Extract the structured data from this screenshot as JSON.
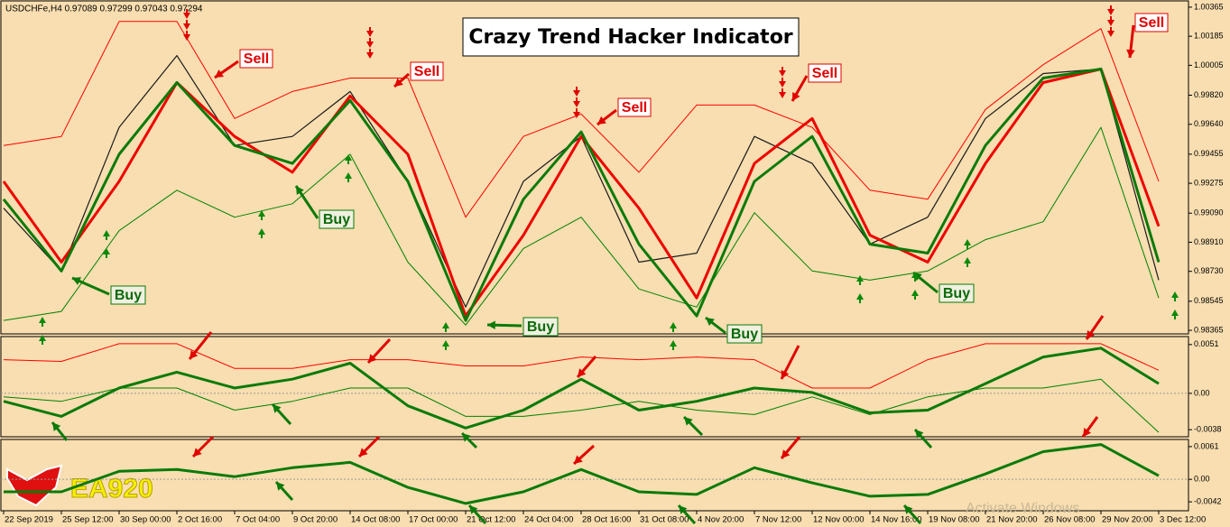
{
  "header": "USDCHFe,H4  0.97089 0.97299 0.97043 0.97294",
  "title": "Crazy Trend Hacker Indicator",
  "logo": "EA920",
  "watermark": "Activate Windows",
  "annotations": {
    "sell": [
      "Sell",
      "Sell",
      "Sell",
      "Sell",
      "Sell"
    ],
    "buy": [
      "Buy",
      "Buy",
      "Buy",
      "Buy",
      "Buy"
    ]
  },
  "chart_data": [
    {
      "type": "line",
      "categories": [
        "22 Sep 2019",
        "25 Sep 12:00",
        "30 Sep 00:00",
        "2 Oct 16:00",
        "7 Oct 04:00",
        "9 Oct 20:00",
        "14 Oct 08:00",
        "17 Oct 00:00",
        "21 Oct 12:00",
        "24 Oct 04:00",
        "28 Oct 16:00",
        "31 Oct 08:00",
        "4 Nov 20:00",
        "7 Nov 12:00",
        "12 Nov 00:00",
        "14 Nov 16:00",
        "19 Nov 08:00",
        "21 Nov 20:00",
        "26 Nov 08:00",
        "29 Nov 20:00",
        "3 Dec 12:00"
      ],
      "series": [
        {
          "color": "#ff0000",
          "values": [
            0.99509,
            0.99565,
            1.00276,
            1.00276,
            0.99676,
            0.99843,
            0.99926,
            0.99926,
            0.99065,
            0.99565,
            0.99704,
            0.99343,
            0.99759,
            0.99759,
            0.99621,
            0.99232,
            0.99176,
            0.99732,
            1.00009,
            1.00232,
            0.99287
          ]
        },
        {
          "color": "#008000",
          "values": [
            0.98426,
            0.98482,
            0.98982,
            0.99232,
            0.99065,
            0.99148,
            0.99454,
            0.98787,
            0.98398,
            0.98871,
            0.99065,
            0.98621,
            0.98509,
            0.99093,
            0.98732,
            0.98676,
            0.98732,
            0.98926,
            0.99037,
            0.99621,
            0.98565
          ]
        },
        {
          "color": "#1a1a1a",
          "values": [
            0.99121,
            0.98732,
            0.99621,
            1.00065,
            0.99509,
            0.99565,
            0.99843,
            0.99287,
            0.98509,
            0.99287,
            0.99565,
            0.98787,
            0.98843,
            0.99565,
            0.99398,
            0.98898,
            0.99065,
            0.99676,
            0.99954,
            0.99982,
            0.98676
          ]
        },
        {
          "color": "#ee0000",
          "values": [
            0.99287,
            0.98787,
            0.99287,
            0.99898,
            0.99565,
            0.99343,
            0.99815,
            0.99454,
            0.98454,
            0.98954,
            0.99565,
            0.99121,
            0.98565,
            0.99398,
            0.99676,
            0.98954,
            0.98787,
            0.99398,
            0.99898,
            0.99982,
            0.99009
          ]
        },
        {
          "color": "#0a7a0a",
          "values": [
            0.99176,
            0.98732,
            0.99454,
            0.99898,
            0.99509,
            0.99398,
            0.99787,
            0.99287,
            0.98426,
            0.99176,
            0.99593,
            0.98898,
            0.98454,
            0.99287,
            0.99565,
            0.98898,
            0.98843,
            0.99509,
            0.99926,
            0.99982,
            0.98787
          ]
        }
      ],
      "ylim": [
        0.98343,
        1.00398
      ],
      "yticks": [
        1.00365,
        1.00185,
        1.00005,
        {
          "value": 0.9982,
          "label": "0.99820"
        },
        {
          "value": 0.9964,
          "label": "0.99640"
        },
        0.99455,
        0.99275,
        {
          "value": 0.9909,
          "label": "0.99090"
        },
        {
          "value": 0.9891,
          "label": "0.98910"
        },
        {
          "value": 0.9873,
          "label": "0.98730"
        },
        0.98545,
        0.98365
      ]
    },
    {
      "type": "line",
      "series": [
        {
          "color": "#ff0000",
          "values": [
            0.00352,
            0.00334,
            0.00519,
            0.00519,
            0.0026,
            0.0026,
            0.00352,
            0.00352,
            0.00287,
            0.00287,
            0.0038,
            0.00352,
            0.0038,
            0.00352,
            0.00056,
            0.00056,
            0.00352,
            0.00519,
            0.00519,
            0.00519,
            0.00241
          ]
        },
        {
          "color": "#008000",
          "values": [
            -0.00037,
            -0.00083,
            0.00056,
            0.00056,
            -0.00176,
            -0.00083,
            0.00056,
            0.00056,
            -0.00241,
            -0.00241,
            -0.00176,
            -0.00083,
            -0.00176,
            -0.00222,
            -0.00037,
            -0.00222,
            -0.00037,
            0.00056,
            0.00056,
            0.00148,
            -0.00408
          ]
        },
        {
          "color": "#0a7a0a",
          "values": [
            -0.00083,
            -0.00241,
            0.00056,
            0.00222,
            0.00056,
            0.00148,
            0.00315,
            -0.0013,
            -0.00362,
            -0.00176,
            0.00148,
            -0.00176,
            -0.00083,
            0.00056,
            9e-05,
            -0.00204,
            -0.00176,
            0.00102,
            0.0038,
            0.00473,
            0.00102
          ]
        }
      ],
      "ylim": [
        -0.00454,
        0.00584
      ],
      "yticks": [
        0.0051,
        {
          "value": 0,
          "label": "0.00"
        },
        -0.0038
      ]
    },
    {
      "type": "line",
      "series": [
        {
          "color": "#0a7a0a",
          "values": [
            -0.00233,
            -0.00233,
            0.00149,
            0.00183,
            0.0005,
            0.00216,
            0.00316,
            -0.0015,
            -0.00449,
            -0.00233,
            0.00183,
            -0.00233,
            -0.00282,
            0.00216,
            -0.00066,
            -0.00316,
            -0.00282,
            0.001,
            0.00515,
            0.00648,
            0.00066
          ]
        }
      ],
      "ylim": [
        -0.00586,
        0.00726
      ],
      "yticks": [
        0.0061,
        {
          "value": 0,
          "label": "0.00"
        },
        -0.0042
      ]
    }
  ]
}
